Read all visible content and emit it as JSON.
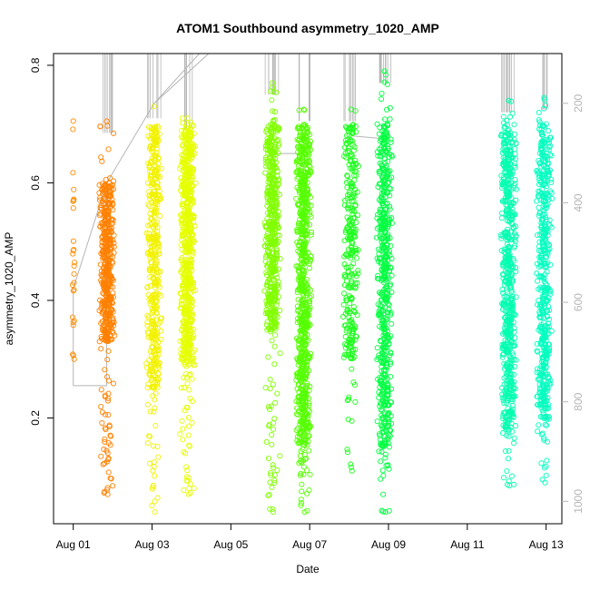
{
  "chart_data": {
    "type": "scatter",
    "title": "ATOM1 Southbound asymmetry_1020_AMP",
    "xlabel": "Date",
    "ylabel": "asymmetry_1020_AMP",
    "x_axis": {
      "ticks": [
        "Aug 01",
        "Aug 03",
        "Aug 05",
        "Aug 07",
        "Aug 09",
        "Aug 11",
        "Aug 13"
      ],
      "range_days": [
        0.5,
        13.4
      ]
    },
    "y_axis_left": {
      "ticks": [
        "0.2",
        "0.4",
        "0.6",
        "0.8"
      ],
      "tick_values": [
        0.2,
        0.4,
        0.6,
        0.8
      ],
      "range": [
        0.02,
        0.82
      ]
    },
    "y_axis_right": {
      "ticks": [
        "200",
        "400",
        "600",
        "800",
        "1000"
      ],
      "tick_values": [
        200,
        400,
        600,
        800,
        1000
      ],
      "range": [
        1045,
        100
      ],
      "color": "#b5b5b5"
    },
    "grid": false,
    "marker": "open-circle",
    "line_color": "#b5b5b5",
    "clusters": [
      {
        "day": 1.0,
        "ymin": 0.3,
        "ymax": 0.705,
        "color": "#ff8c00",
        "density": 24,
        "sparse": true
      },
      {
        "day": 1.85,
        "ymin": 0.07,
        "ymax": 0.705,
        "color": "#ff8000",
        "density": 900,
        "core": [
          0.33,
          0.6
        ],
        "top": 1.15
      },
      {
        "day": 3.05,
        "ymin": 0.04,
        "ymax": 0.73,
        "color": "#f2f200",
        "density": 800,
        "core": [
          0.25,
          0.7
        ],
        "top": 1.15
      },
      {
        "day": 3.9,
        "ymin": 0.07,
        "ymax": 0.71,
        "color": "#e6ff00",
        "density": 1300,
        "core": [
          0.29,
          0.7
        ],
        "top": 1.15
      },
      {
        "day": 6.05,
        "ymin": 0.04,
        "ymax": 0.77,
        "color": "#80ff00",
        "density": 1000,
        "core": [
          0.35,
          0.7
        ],
        "top": 1.15
      },
      {
        "day": 6.85,
        "ymin": 0.04,
        "ymax": 0.725,
        "color": "#55ff00",
        "density": 1400,
        "core": [
          0.15,
          0.7
        ],
        "top": 1.15
      },
      {
        "day": 8.05,
        "ymin": 0.11,
        "ymax": 0.725,
        "color": "#1aff1a",
        "density": 500,
        "core": [
          0.3,
          0.7
        ],
        "top": 1.15
      },
      {
        "day": 8.9,
        "ymin": 0.04,
        "ymax": 0.79,
        "color": "#00ff40",
        "density": 1000,
        "core": [
          0.15,
          0.7
        ],
        "top": 1.15
      },
      {
        "day": 12.05,
        "ymin": 0.085,
        "ymax": 0.74,
        "color": "#00ffb0",
        "density": 1100,
        "core": [
          0.18,
          0.7
        ],
        "top": 1.15
      },
      {
        "day": 12.95,
        "ymin": 0.09,
        "ymax": 0.745,
        "color": "#00ffbf",
        "density": 900,
        "core": [
          0.2,
          0.7
        ],
        "top": 1.15
      }
    ],
    "connector_path": [
      [
        1.0,
        0.255
      ],
      [
        1.85,
        0.255
      ],
      [
        1.85,
        0.6
      ],
      [
        1.0,
        0.42
      ],
      [
        1.0,
        0.255
      ]
    ]
  }
}
